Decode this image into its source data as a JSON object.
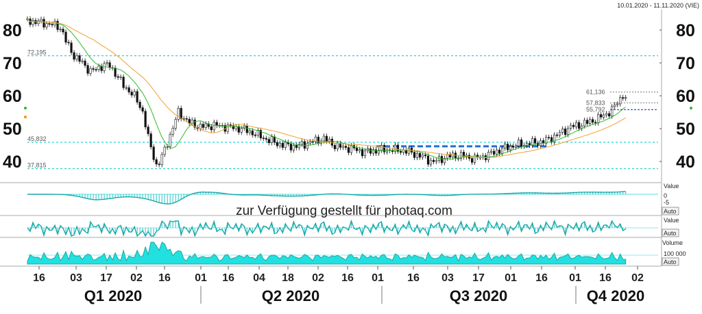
{
  "header": {
    "date_range": "10.01.2020 - 11.11.2020 (VIE)"
  },
  "watermark": "zur Verfügung gestellt für photaq.com",
  "chart_data": {
    "type": "candlestick",
    "y_ticks": [
      40,
      50,
      60,
      70,
      80
    ],
    "ylim": [
      36,
      84
    ],
    "reference_lines": [
      {
        "label": "72,195",
        "value": 72.195
      },
      {
        "label": "45,832",
        "value": 45.832
      },
      {
        "label": "37,815",
        "value": 37.815
      }
    ],
    "price_labels": [
      {
        "label": "61,136",
        "value": 61.136
      },
      {
        "label": "57,833",
        "value": 57.833
      },
      {
        "label": "55,792",
        "value": 55.792
      }
    ],
    "resistance_line": {
      "from": "2020-07-06",
      "to": "2020-10-01",
      "value": 44.6
    },
    "ohlc_close": [
      [
        "2020-01-10",
        82.8
      ],
      [
        "2020-01-14",
        82.6
      ],
      [
        "2020-01-17",
        82.2
      ],
      [
        "2020-01-22",
        81.8
      ],
      [
        "2020-01-27",
        80.8
      ],
      [
        "2020-01-30",
        76.0
      ],
      [
        "2020-02-03",
        72.0
      ],
      [
        "2020-02-07",
        70.0
      ],
      [
        "2020-02-11",
        67.5
      ],
      [
        "2020-02-14",
        68.0
      ],
      [
        "2020-02-18",
        69.5
      ],
      [
        "2020-02-21",
        69.0
      ],
      [
        "2020-02-25",
        66.0
      ],
      [
        "2020-02-28",
        63.0
      ],
      [
        "2020-03-04",
        60.5
      ],
      [
        "2020-03-09",
        55.0
      ],
      [
        "2020-03-12",
        46.0
      ],
      [
        "2020-03-16",
        38.5
      ],
      [
        "2020-03-18",
        40.5
      ],
      [
        "2020-03-20",
        43.5
      ],
      [
        "2020-03-24",
        50.0
      ],
      [
        "2020-03-27",
        55.0
      ],
      [
        "2020-04-01",
        52.0
      ],
      [
        "2020-04-07",
        50.5
      ],
      [
        "2020-04-14",
        51.0
      ],
      [
        "2020-04-21",
        50.5
      ],
      [
        "2020-04-28",
        50.0
      ],
      [
        "2020-05-05",
        48.5
      ],
      [
        "2020-05-12",
        46.5
      ],
      [
        "2020-05-19",
        45.0
      ],
      [
        "2020-05-26",
        44.5
      ],
      [
        "2020-06-02",
        45.8
      ],
      [
        "2020-06-09",
        47.0
      ],
      [
        "2020-06-16",
        44.5
      ],
      [
        "2020-06-23",
        44.0
      ],
      [
        "2020-06-30",
        42.8
      ],
      [
        "2020-07-07",
        43.5
      ],
      [
        "2020-07-14",
        43.6
      ],
      [
        "2020-07-21",
        43.2
      ],
      [
        "2020-07-28",
        41.8
      ],
      [
        "2020-08-04",
        39.8
      ],
      [
        "2020-08-11",
        41.5
      ],
      [
        "2020-08-18",
        41.8
      ],
      [
        "2020-08-25",
        40.8
      ],
      [
        "2020-09-01",
        42.0
      ],
      [
        "2020-09-08",
        43.8
      ],
      [
        "2020-09-15",
        45.0
      ],
      [
        "2020-09-22",
        45.5
      ],
      [
        "2020-09-29",
        46.0
      ],
      [
        "2020-10-06",
        48.0
      ],
      [
        "2020-10-13",
        50.5
      ],
      [
        "2020-10-20",
        51.5
      ],
      [
        "2020-10-27",
        53.0
      ],
      [
        "2020-11-03",
        55.5
      ],
      [
        "2020-11-09",
        60.5
      ],
      [
        "2020-11-11",
        57.833
      ]
    ],
    "x_ticks": [
      "16",
      "03",
      "17",
      "02",
      "16",
      "01",
      "16",
      "04",
      "18",
      "02",
      "16",
      "01",
      "16",
      "03",
      "17",
      "01",
      "16",
      "01",
      "16",
      "02"
    ],
    "quarters": [
      "Q1 2020",
      "Q2 2020",
      "Q3 2020",
      "Q4 2020"
    ],
    "indicators": [
      {
        "label": "Value",
        "ticks": [
          "0",
          "-5"
        ],
        "button": "Auto"
      },
      {
        "label": "Value",
        "ticks": [],
        "button": "Auto"
      },
      {
        "label": "Volume",
        "ticks": [
          "100 000"
        ],
        "button": "Auto"
      }
    ]
  }
}
